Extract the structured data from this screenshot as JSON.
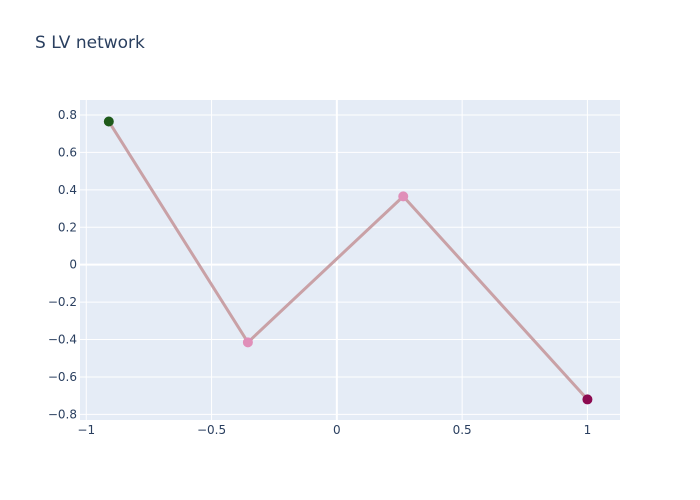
{
  "chart_data": {
    "type": "line",
    "title": "S LV network",
    "xlabel": "",
    "ylabel": "",
    "xlim": [
      -1.025,
      1.13
    ],
    "ylim": [
      -0.83,
      0.88
    ],
    "grid": true,
    "legend": "none",
    "x_ticks": [
      -1,
      -0.5,
      0,
      0.5,
      1
    ],
    "x_tick_labels": [
      "−1",
      "−0.5",
      "0",
      "0.5",
      "1"
    ],
    "y_ticks": [
      0.8,
      0.6,
      0.4,
      0.2,
      0,
      -0.2,
      -0.4,
      -0.6,
      -0.8
    ],
    "y_tick_labels": [
      "0.8",
      "0.6",
      "0.4",
      "0.2",
      "0",
      "−0.2",
      "−0.4",
      "−0.6",
      "−0.8"
    ],
    "series": [
      {
        "edges": [
          {
            "x": [
              -0.91,
              -0.355
            ],
            "y": [
              0.765,
              -0.415
            ]
          },
          {
            "x": [
              -0.355,
              0.265
            ],
            "y": [
              -0.415,
              0.365
            ]
          },
          {
            "x": [
              0.265,
              1.0
            ],
            "y": [
              0.365,
              -0.72
            ]
          }
        ],
        "nodes": [
          {
            "x": -0.91,
            "y": 0.765,
            "color": "#1f5a1a"
          },
          {
            "x": -0.355,
            "y": -0.415,
            "color": "#e08fb9"
          },
          {
            "x": 0.265,
            "y": 0.365,
            "color": "#e08fb9"
          },
          {
            "x": 1.0,
            "y": -0.72,
            "color": "#8c0a50"
          }
        ],
        "line_color": "#c9a1a6"
      }
    ],
    "colors": {
      "plot_bg": "#e5ecf6",
      "grid": "#ffffff",
      "text": "#2a3f5f"
    }
  }
}
